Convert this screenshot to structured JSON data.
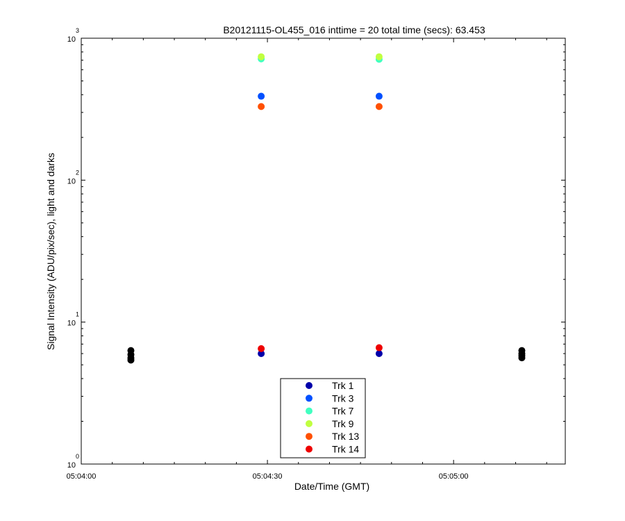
{
  "chart_data": {
    "type": "scatter",
    "title": "B20121115-OL455_016 inttime = 20 total time (secs): 63.453",
    "xlabel": "Date/Time (GMT)",
    "ylabel": "Signal Intensity (ADU/pix/sec), light and darks",
    "y_scale": "log",
    "ylim": [
      1,
      1000
    ],
    "xlim": [
      "05:04:00",
      "05:05:18"
    ],
    "x_ticks": [
      "05:04:00",
      "05:04:30",
      "05:05:00"
    ],
    "y_ticks": [
      {
        "base": "10",
        "exp": "0",
        "value": 1
      },
      {
        "base": "10",
        "exp": "1",
        "value": 10
      },
      {
        "base": "10",
        "exp": "2",
        "value": 100
      },
      {
        "base": "10",
        "exp": "3",
        "value": 1000
      }
    ],
    "grid": false,
    "legend_position": "bottom-center",
    "series": [
      {
        "name": "Trk 1",
        "color": "#0000aa",
        "points": [
          {
            "x": "05:04:29",
            "y": 6.0
          },
          {
            "x": "05:04:48",
            "y": 6.0
          }
        ]
      },
      {
        "name": "Trk 3",
        "color": "#0050ff",
        "points": [
          {
            "x": "05:04:29",
            "y": 390
          },
          {
            "x": "05:04:48",
            "y": 390
          }
        ]
      },
      {
        "name": "Trk 7",
        "color": "#40ffc0",
        "points": [
          {
            "x": "05:04:29",
            "y": 715
          },
          {
            "x": "05:04:48",
            "y": 710
          }
        ]
      },
      {
        "name": "Trk 9",
        "color": "#c0ff40",
        "points": [
          {
            "x": "05:04:29",
            "y": 740
          },
          {
            "x": "05:04:48",
            "y": 740
          }
        ]
      },
      {
        "name": "Trk 13",
        "color": "#ff5000",
        "points": [
          {
            "x": "05:04:29",
            "y": 330
          },
          {
            "x": "05:04:48",
            "y": 330
          }
        ]
      },
      {
        "name": "Trk 14",
        "color": "#ee0000",
        "points": [
          {
            "x": "05:04:29",
            "y": 6.5
          },
          {
            "x": "05:04:48",
            "y": 6.6
          }
        ]
      }
    ],
    "dark_points": {
      "color": "#000000",
      "points": [
        {
          "x": "05:04:08",
          "y": 6.3
        },
        {
          "x": "05:04:08",
          "y": 5.9
        },
        {
          "x": "05:04:08",
          "y": 5.6
        },
        {
          "x": "05:04:08",
          "y": 5.4
        },
        {
          "x": "05:05:11",
          "y": 6.3
        },
        {
          "x": "05:05:11",
          "y": 6.0
        },
        {
          "x": "05:05:11",
          "y": 5.8
        },
        {
          "x": "05:05:11",
          "y": 5.6
        }
      ]
    }
  }
}
